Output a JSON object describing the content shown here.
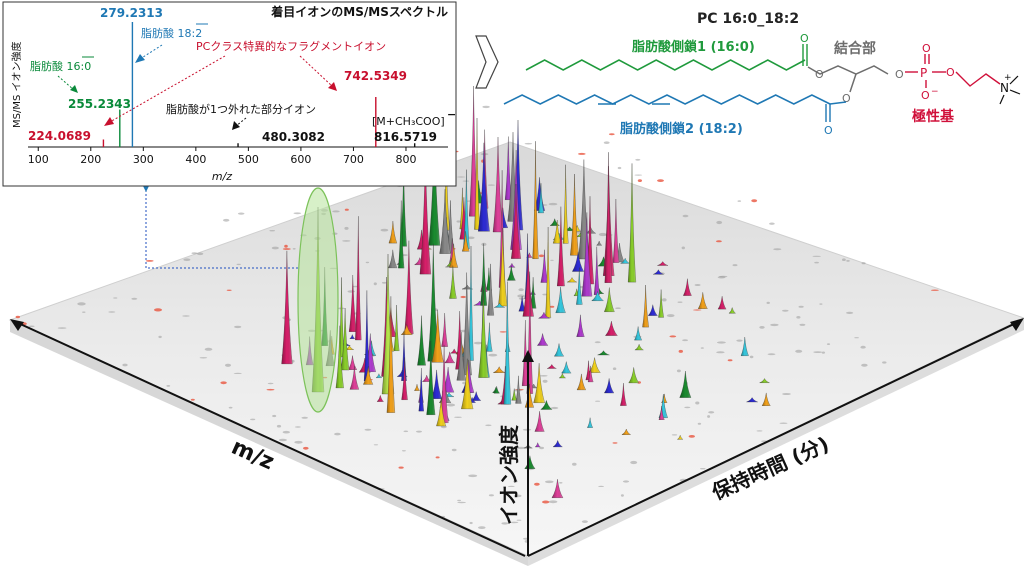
{
  "colors": {
    "ms_green": "#0a8a3a",
    "ms_blue": "#1f78b4",
    "ms_red": "#c8102e",
    "ms_black": "#111111",
    "chain1": "#1f9a3c",
    "chain2": "#1f78b4",
    "polar": "#d0103a",
    "gray": "#6d6d6d",
    "highlight": "#b6e39a"
  },
  "inset": {
    "title": "着目イオンのMS/MSスペクトル",
    "ylabel": "MS/MS イオン強度",
    "xlabel": "m/z",
    "annotation_fa1": "脂肪酸 16:0",
    "annotation_fa2": "脂肪酸 18:2",
    "annotation_pc": "PCクラス特異的なフラグメントイオン",
    "annotation_partial": "脂肪酸が1つ外れた部分イオン",
    "annotation_precursor": "[M+CH₃COO]",
    "charge": "−"
  },
  "chart_data": {
    "type": "bar",
    "title": "着目イオンのMS/MSスペクトル",
    "xlabel": "m/z",
    "ylabel": "MS/MS イオン強度",
    "xlim": [
      90,
      880
    ],
    "ylim": [
      0,
      100
    ],
    "x_ticks": [
      100,
      200,
      300,
      400,
      500,
      600,
      700,
      800
    ],
    "peaks": [
      {
        "mz": 224.0689,
        "intensity": 6,
        "label": "224.0689",
        "group": "pc"
      },
      {
        "mz": 255.2343,
        "intensity": 30,
        "label": "255.2343",
        "group": "fa1"
      },
      {
        "mz": 279.2313,
        "intensity": 100,
        "label": "279.2313",
        "group": "fa2"
      },
      {
        "mz": 480.3082,
        "intensity": 3,
        "label": "480.3082",
        "group": "partial"
      },
      {
        "mz": 742.5349,
        "intensity": 40,
        "label": "742.5349",
        "group": "pc"
      },
      {
        "mz": 816.5719,
        "intensity": 3,
        "label": "816.5719",
        "group": "precursor"
      }
    ]
  },
  "structure": {
    "title": "PC 16:0_18:2",
    "chain1": "脂肪酸側鎖1 (16:0)",
    "chain2": "脂肪酸側鎖2 (18:2)",
    "backbone": "結合部",
    "headgroup": "極性基",
    "atom_o": "O",
    "atom_p": "P",
    "atom_n": "N",
    "plus": "+",
    "minus": "−"
  },
  "plot3d": {
    "axis_mz": "m/z",
    "axis_intensity": "イオン強度",
    "axis_rt": "保持時間 (分)"
  }
}
